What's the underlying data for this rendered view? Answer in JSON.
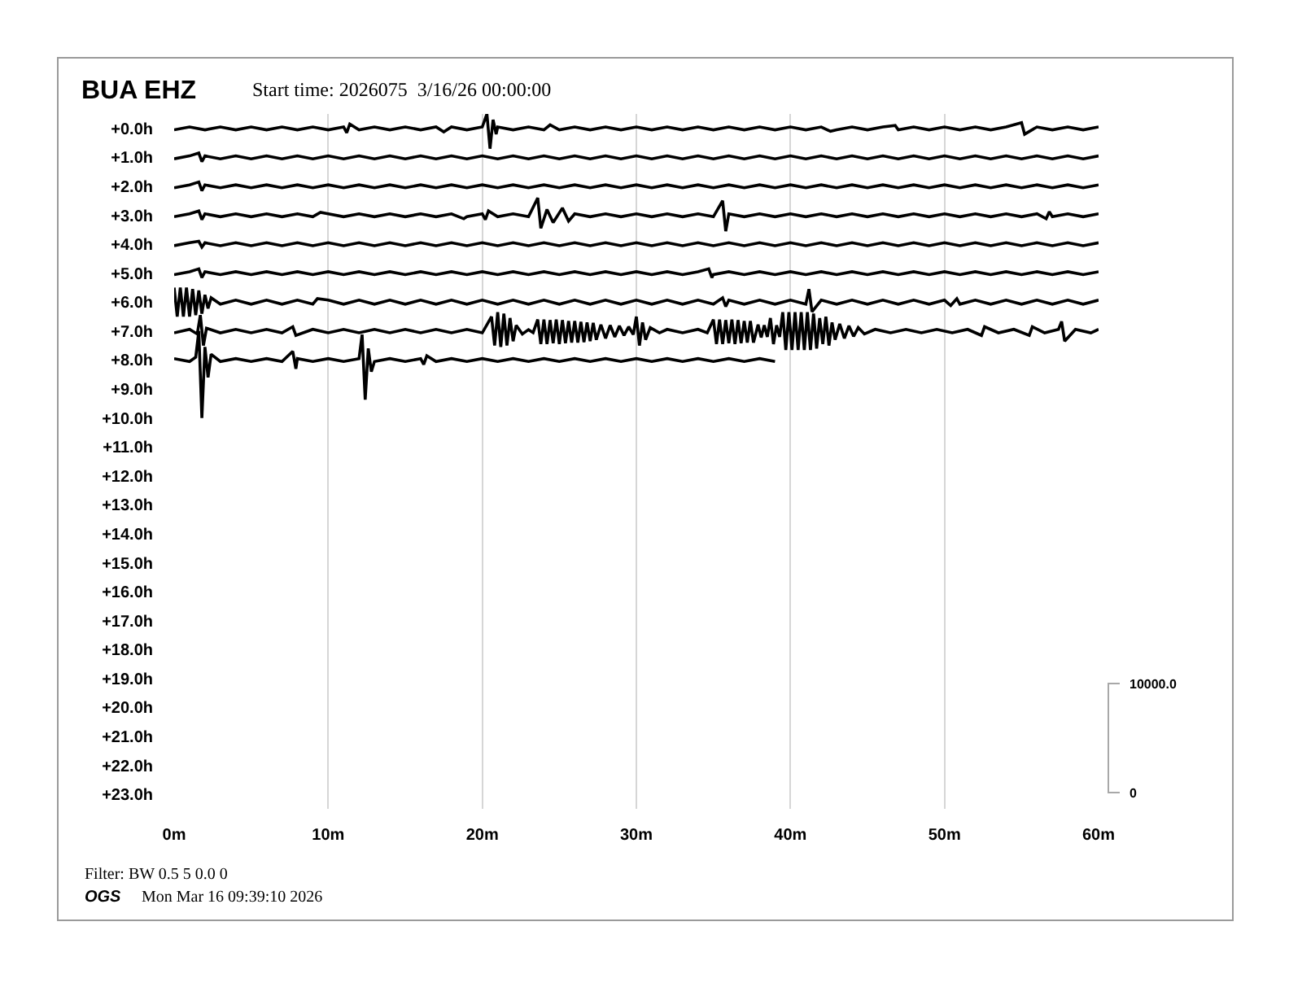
{
  "chart_data": {
    "type": "line",
    "title": "BUA EHZ",
    "subtitle": "Start time: 2026075  3/16/26 00:00:00",
    "annotations": [
      "10000.0",
      "0",
      "Filter: BW 0.5 5 0.0 0",
      "OGS",
      "Mon Mar 16 09:39:10 2026"
    ],
    "xlim": [
      0,
      60
    ],
    "xticks": [
      {
        "value": 0,
        "label": "0m"
      },
      {
        "value": 10,
        "label": "10m"
      },
      {
        "value": 20,
        "label": "20m"
      },
      {
        "value": 30,
        "label": "30m"
      },
      {
        "value": 40,
        "label": "40m"
      },
      {
        "value": 50,
        "label": "50m"
      },
      {
        "value": 60,
        "label": "60m"
      }
    ],
    "ylim": [
      23.5,
      -0.5
    ],
    "yticks": [
      {
        "value": 0,
        "label": "+0.0h"
      },
      {
        "value": 1,
        "label": "+1.0h"
      },
      {
        "value": 2,
        "label": "+2.0h"
      },
      {
        "value": 3,
        "label": "+3.0h"
      },
      {
        "value": 4,
        "label": "+4.0h"
      },
      {
        "value": 5,
        "label": "+5.0h"
      },
      {
        "value": 6,
        "label": "+6.0h"
      },
      {
        "value": 7,
        "label": "+7.0h"
      },
      {
        "value": 8,
        "label": "+8.0h"
      },
      {
        "value": 9,
        "label": "+9.0h"
      },
      {
        "value": 10,
        "label": "+10.0h"
      },
      {
        "value": 11,
        "label": "+11.0h"
      },
      {
        "value": 12,
        "label": "+12.0h"
      },
      {
        "value": 13,
        "label": "+13.0h"
      },
      {
        "value": 14,
        "label": "+14.0h"
      },
      {
        "value": 15,
        "label": "+15.0h"
      },
      {
        "value": 16,
        "label": "+16.0h"
      },
      {
        "value": 17,
        "label": "+17.0h"
      },
      {
        "value": 18,
        "label": "+18.0h"
      },
      {
        "value": 19,
        "label": "+19.0h"
      },
      {
        "value": 20,
        "label": "+20.0h"
      },
      {
        "value": 21,
        "label": "+21.0h"
      },
      {
        "value": 22,
        "label": "+22.0h"
      },
      {
        "value": 23,
        "label": "+23.0h"
      }
    ],
    "grid": "x",
    "series": [
      {
        "color": "#000000",
        "x": [
          0,
          1,
          2,
          3,
          4,
          5,
          6,
          7,
          8,
          9,
          10,
          11,
          11.2,
          11.4,
          12,
          13,
          14,
          15,
          16,
          17,
          17.5,
          18,
          19,
          20,
          20.3,
          20.5,
          20.7,
          20.9,
          21,
          22,
          23,
          24,
          24.4,
          25,
          26,
          27,
          28,
          29,
          30,
          31,
          32,
          33,
          34,
          35,
          36,
          37,
          38,
          39,
          40,
          41,
          42,
          42.6,
          43,
          44,
          45,
          46,
          46.8,
          47,
          48,
          49,
          50,
          51,
          52,
          53,
          54,
          55,
          55.2,
          56,
          57,
          58,
          59,
          60
        ],
        "values": [
          0.05,
          -0.05,
          0.05,
          -0.05,
          0.05,
          -0.05,
          0.05,
          -0.05,
          0.05,
          -0.05,
          0.05,
          -0.05,
          0.15,
          -0.15,
          0.05,
          -0.05,
          0.05,
          -0.05,
          0.05,
          -0.05,
          0.12,
          -0.05,
          0.05,
          -0.05,
          -0.5,
          0.7,
          -0.3,
          0.2,
          -0.05,
          0.05,
          -0.05,
          0.05,
          -0.12,
          0.05,
          -0.05,
          0.05,
          -0.05,
          0.05,
          -0.05,
          0.05,
          -0.05,
          0.05,
          -0.05,
          0.05,
          -0.05,
          0.05,
          -0.05,
          0.05,
          -0.05,
          0.05,
          -0.05,
          0.1,
          0.05,
          -0.05,
          0.05,
          -0.05,
          -0.1,
          0.05,
          -0.05,
          0.05,
          -0.05,
          0.05,
          -0.05,
          0.05,
          -0.05,
          -0.2,
          0.2,
          -0.05,
          0.05,
          -0.05,
          0.05,
          -0.05
        ]
      },
      {
        "color": "#000000",
        "x": [
          0,
          1,
          1.6,
          1.8,
          2,
          3,
          4,
          5,
          6,
          7,
          8,
          9,
          10,
          11,
          12,
          13,
          14,
          15,
          16,
          17,
          18,
          19,
          20,
          21,
          22,
          23,
          24,
          25,
          26,
          27,
          28,
          29,
          30,
          31,
          32,
          33,
          34,
          35,
          36,
          37,
          38,
          39,
          40,
          41,
          42,
          43,
          44,
          45,
          46,
          47,
          48,
          49,
          50,
          51,
          52,
          53,
          54,
          55,
          56,
          57,
          58,
          59,
          60
        ],
        "values": [
          1.05,
          0.95,
          0.85,
          1.15,
          0.95,
          1.05,
          0.95,
          1.05,
          0.95,
          1.05,
          0.95,
          1.05,
          0.95,
          1.05,
          0.95,
          1.05,
          0.95,
          1.05,
          0.95,
          1.05,
          0.95,
          1.05,
          0.95,
          1.05,
          0.95,
          1.05,
          0.95,
          1.05,
          0.95,
          1.05,
          0.95,
          1.05,
          0.95,
          1.05,
          0.95,
          1.05,
          0.95,
          1.05,
          0.95,
          1.05,
          0.95,
          1.05,
          0.95,
          1.05,
          0.95,
          1.05,
          0.95,
          1.05,
          0.95,
          1.05,
          0.95,
          1.05,
          0.95,
          1.05,
          0.95,
          1.05,
          0.95,
          1.05,
          0.95,
          1.05,
          0.95,
          1.05,
          0.95
        ]
      },
      {
        "color": "#000000",
        "x": [
          0,
          1,
          1.6,
          1.8,
          2,
          3,
          4,
          5,
          6,
          7,
          8,
          9,
          10,
          11,
          12,
          13,
          14,
          15,
          16,
          17,
          18,
          19,
          20,
          21,
          22,
          23,
          24,
          25,
          26,
          27,
          28,
          29,
          30,
          31,
          32,
          33,
          34,
          35,
          36,
          37,
          38,
          39,
          40,
          41,
          42,
          43,
          44,
          45,
          46,
          47,
          48,
          49,
          50,
          51,
          52,
          53,
          54,
          55,
          56,
          57,
          58,
          59,
          60
        ],
        "values": [
          2.05,
          1.95,
          1.85,
          2.15,
          1.95,
          2.05,
          1.95,
          2.05,
          1.95,
          2.05,
          1.95,
          2.05,
          1.95,
          2.05,
          1.95,
          2.05,
          1.95,
          2.05,
          1.95,
          2.05,
          1.95,
          2.05,
          1.95,
          2.05,
          1.95,
          2.05,
          1.95,
          2.05,
          1.95,
          2.05,
          1.95,
          2.05,
          1.95,
          2.05,
          1.95,
          2.05,
          1.95,
          2.05,
          1.95,
          2.05,
          1.95,
          2.05,
          1.95,
          2.05,
          1.95,
          2.05,
          1.95,
          2.05,
          1.95,
          2.05,
          1.95,
          2.05,
          1.95,
          2.05,
          1.95,
          2.05,
          1.95,
          2.05,
          1.95,
          2.05,
          1.95,
          2.05,
          1.95
        ]
      },
      {
        "color": "#000000",
        "x": [
          0,
          1,
          1.6,
          1.8,
          2,
          3,
          4,
          5,
          6,
          7,
          8,
          9,
          9.5,
          10,
          11,
          12,
          13,
          14,
          15,
          16,
          17,
          18,
          18.8,
          19,
          20,
          20.2,
          20.4,
          21,
          22,
          23,
          23.6,
          23.8,
          24.2,
          24.6,
          25.2,
          25.6,
          26,
          27,
          28,
          29,
          30,
          31,
          32,
          33,
          34,
          35,
          35.6,
          35.8,
          36,
          37,
          38,
          39,
          40,
          41,
          42,
          43,
          44,
          45,
          46,
          47,
          48,
          49,
          50,
          51,
          52,
          53,
          54,
          55,
          56,
          56.6,
          56.8,
          57,
          58,
          59,
          60
        ],
        "values": [
          3.05,
          2.95,
          2.85,
          3.15,
          2.95,
          3.05,
          2.95,
          3.05,
          2.95,
          3.05,
          2.95,
          3.05,
          2.9,
          2.95,
          3.05,
          2.95,
          3.05,
          2.95,
          3.05,
          2.95,
          3.05,
          2.95,
          3.12,
          3.05,
          2.95,
          3.15,
          2.85,
          3.05,
          2.95,
          3.05,
          2.4,
          3.45,
          2.8,
          3.25,
          2.75,
          3.2,
          2.95,
          3.05,
          2.95,
          3.05,
          2.95,
          3.05,
          2.95,
          3.05,
          2.95,
          3.05,
          2.5,
          3.55,
          2.95,
          3.05,
          2.95,
          3.05,
          2.95,
          3.05,
          2.95,
          3.05,
          2.95,
          3.05,
          2.95,
          3.05,
          2.95,
          3.05,
          2.95,
          3.05,
          2.95,
          3.05,
          2.95,
          3.05,
          2.95,
          3.12,
          2.88,
          3.05,
          2.95,
          3.05,
          2.95
        ]
      },
      {
        "color": "#000000",
        "x": [
          0,
          1,
          1.6,
          1.8,
          2,
          3,
          4,
          5,
          6,
          7,
          8,
          9,
          10,
          11,
          12,
          13,
          14,
          15,
          16,
          17,
          18,
          19,
          20,
          21,
          22,
          23,
          24,
          25,
          26,
          27,
          28,
          29,
          30,
          31,
          32,
          33,
          34,
          35,
          36,
          37,
          38,
          39,
          40,
          41,
          42,
          43,
          44,
          45,
          46,
          47,
          48,
          49,
          50,
          51,
          52,
          53,
          54,
          55,
          56,
          57,
          58,
          59,
          60
        ],
        "values": [
          4.05,
          3.95,
          3.9,
          4.1,
          3.95,
          4.05,
          3.95,
          4.05,
          3.95,
          4.05,
          3.95,
          4.05,
          3.95,
          4.05,
          3.95,
          4.05,
          3.95,
          4.05,
          3.95,
          4.05,
          3.95,
          4.05,
          3.95,
          4.05,
          3.95,
          4.05,
          3.95,
          4.05,
          3.95,
          4.05,
          3.95,
          4.05,
          3.95,
          4.05,
          3.95,
          4.05,
          3.95,
          4.05,
          3.95,
          4.05,
          3.95,
          4.05,
          3.95,
          4.05,
          3.95,
          4.05,
          3.95,
          4.05,
          3.95,
          4.05,
          3.95,
          4.05,
          3.95,
          4.05,
          3.95,
          4.05,
          3.95,
          4.05,
          3.95,
          4.05,
          3.95,
          4.05,
          3.95
        ]
      },
      {
        "color": "#000000",
        "x": [
          0,
          1,
          1.6,
          1.8,
          2,
          3,
          4,
          5,
          6,
          7,
          8,
          9,
          10,
          11,
          12,
          13,
          14,
          15,
          16,
          17,
          18,
          19,
          20,
          21,
          22,
          23,
          24,
          25,
          26,
          27,
          28,
          29,
          30,
          31,
          32,
          33,
          34,
          34.7,
          34.9,
          35,
          36,
          37,
          38,
          39,
          40,
          41,
          42,
          43,
          44,
          45,
          46,
          47,
          48,
          49,
          50,
          51,
          52,
          53,
          54,
          55,
          56,
          57,
          58,
          59,
          60
        ],
        "values": [
          5.05,
          4.95,
          4.85,
          5.15,
          4.95,
          5.05,
          4.95,
          5.05,
          4.95,
          5.05,
          4.95,
          5.05,
          4.95,
          5.05,
          4.95,
          5.05,
          4.95,
          5.05,
          4.95,
          5.05,
          4.95,
          5.05,
          4.95,
          5.05,
          4.95,
          5.05,
          4.95,
          5.05,
          4.95,
          5.05,
          4.95,
          5.05,
          4.95,
          5.05,
          4.95,
          5.05,
          4.95,
          4.85,
          5.15,
          5.05,
          4.95,
          5.05,
          4.95,
          5.05,
          4.95,
          5.05,
          4.95,
          5.05,
          4.95,
          5.05,
          4.95,
          5.05,
          4.95,
          5.05,
          4.95,
          5.05,
          4.95,
          5.05,
          4.95,
          5.05,
          4.95,
          5.05,
          4.95,
          5.05,
          4.95
        ]
      },
      {
        "color": "#000000",
        "x": [
          0,
          0.2,
          0.4,
          0.6,
          0.8,
          1,
          1.2,
          1.4,
          1.6,
          1.8,
          2,
          2.2,
          2.4,
          3,
          4,
          5,
          6,
          7,
          8,
          9,
          9.3,
          10,
          11,
          12,
          13,
          14,
          15,
          16,
          17,
          18,
          19,
          20,
          21,
          22,
          23,
          24,
          25,
          26,
          27,
          28,
          29,
          30,
          31,
          32,
          33,
          34,
          35,
          35.6,
          35.8,
          36,
          37,
          38,
          39,
          40,
          41,
          41.2,
          41.4,
          42,
          43,
          44,
          45,
          46,
          47,
          48,
          49,
          50,
          50.4,
          50.8,
          51,
          52,
          53,
          54,
          55,
          56,
          57,
          58,
          59,
          60
        ],
        "values": [
          5.5,
          6.5,
          5.5,
          6.5,
          5.5,
          6.5,
          5.55,
          6.45,
          5.6,
          6.4,
          5.75,
          6.22,
          5.85,
          6.07,
          5.93,
          6.07,
          5.93,
          6.07,
          5.93,
          6.07,
          5.88,
          5.93,
          6.07,
          5.93,
          6.07,
          5.93,
          6.07,
          5.93,
          6.07,
          5.93,
          6.07,
          5.93,
          6.07,
          5.93,
          6.07,
          5.93,
          6.07,
          5.93,
          6.07,
          5.93,
          6.07,
          5.93,
          6.07,
          5.93,
          6.07,
          5.93,
          6.07,
          5.85,
          6.15,
          5.93,
          6.07,
          5.93,
          6.07,
          5.93,
          6.07,
          5.55,
          6.33,
          5.93,
          6.07,
          5.93,
          6.07,
          5.93,
          6.07,
          5.93,
          6.07,
          5.93,
          6.12,
          5.88,
          6.07,
          5.93,
          6.07,
          5.93,
          6.07,
          5.93,
          6.07,
          5.93,
          6.07,
          5.93
        ]
      },
      {
        "color": "#000000",
        "x": [
          0,
          1,
          1.5,
          1.7,
          1.9,
          2.1,
          3,
          4,
          5,
          6,
          7,
          7.7,
          7.9,
          9,
          10,
          11,
          12,
          13,
          14,
          15,
          16,
          17,
          18,
          19,
          20,
          20.6,
          20.8,
          21.0,
          21.2,
          21.4,
          21.6,
          21.8,
          22.0,
          22.2,
          22.6,
          23.0,
          23.3,
          23.6,
          23.8,
          24.0,
          24.2,
          24.4,
          24.6,
          24.8,
          25.0,
          25.2,
          25.4,
          25.6,
          25.8,
          26.0,
          26.2,
          26.4,
          26.6,
          26.8,
          27.0,
          27.2,
          27.4,
          27.7,
          28.0,
          28.3,
          28.6,
          28.9,
          29.2,
          29.5,
          29.8,
          30.0,
          30.2,
          30.4,
          30.6,
          30.9,
          31.5,
          32,
          33,
          34,
          34.6,
          35.0,
          35.2,
          35.4,
          35.6,
          35.8,
          36.0,
          36.2,
          36.4,
          36.6,
          36.8,
          37.0,
          37.2,
          37.4,
          37.6,
          37.9,
          38.1,
          38.3,
          38.5,
          38.7,
          38.9,
          39.1,
          39.3,
          39.5,
          39.7,
          39.9,
          40.1,
          40.3,
          40.5,
          40.7,
          40.9,
          41.1,
          41.3,
          41.5,
          41.7,
          41.9,
          42.1,
          42.3,
          42.5,
          42.7,
          42.9,
          43.2,
          43.5,
          43.8,
          44.1,
          44.4,
          44.8,
          45.5,
          46.5,
          47.5,
          48.5,
          49.5,
          50.5,
          51.5,
          52.4,
          52.6,
          53.5,
          54.5,
          55.5,
          55.7,
          56.5,
          57.4,
          57.6,
          57.8,
          58.5,
          59.5,
          60
        ],
        "values": [
          7.06,
          6.94,
          7.1,
          6.45,
          7.5,
          6.9,
          7.06,
          6.94,
          7.06,
          6.94,
          7.06,
          6.85,
          7.15,
          6.94,
          7.06,
          6.94,
          7.06,
          6.94,
          7.06,
          6.94,
          7.06,
          6.94,
          7.06,
          6.94,
          7.06,
          6.5,
          7.5,
          6.35,
          7.55,
          6.4,
          7.5,
          6.55,
          7.35,
          6.8,
          7.1,
          6.95,
          7.05,
          6.6,
          7.45,
          6.6,
          7.45,
          6.62,
          7.42,
          6.6,
          7.45,
          6.62,
          7.42,
          6.65,
          7.4,
          6.65,
          7.4,
          6.68,
          7.38,
          6.7,
          7.35,
          6.72,
          7.3,
          6.78,
          7.25,
          6.8,
          7.2,
          6.82,
          7.15,
          6.85,
          7.12,
          6.5,
          7.5,
          6.7,
          7.3,
          6.88,
          7.06,
          6.94,
          7.06,
          6.94,
          7.06,
          6.6,
          7.45,
          6.6,
          7.45,
          6.62,
          7.42,
          6.6,
          7.45,
          6.62,
          7.42,
          6.65,
          7.4,
          6.65,
          7.4,
          6.78,
          7.22,
          6.8,
          7.2,
          6.55,
          7.45,
          6.8,
          7.2,
          6.35,
          7.65,
          6.35,
          7.65,
          6.35,
          7.65,
          6.35,
          7.65,
          6.35,
          7.65,
          6.4,
          7.6,
          6.55,
          7.45,
          6.5,
          7.5,
          6.7,
          7.3,
          6.75,
          7.25,
          6.82,
          7.18,
          6.88,
          7.1,
          6.94,
          7.06,
          6.94,
          7.06,
          6.94,
          7.06,
          6.94,
          7.15,
          6.85,
          7.06,
          6.94,
          7.15,
          6.85,
          7.06,
          6.94,
          6.67,
          7.35,
          6.94,
          7.06,
          6.94
        ]
      },
      {
        "color": "#000000",
        "x": [
          0,
          1,
          1.4,
          1.6,
          1.8,
          2,
          2.2,
          2.4,
          3,
          4,
          5,
          6,
          7,
          7.7,
          7.9,
          8,
          9,
          10,
          11,
          12,
          12.2,
          12.4,
          12.6,
          12.8,
          13,
          14,
          15,
          16,
          16.2,
          16.4,
          17,
          18,
          19,
          20,
          21,
          22,
          23,
          24,
          25,
          26,
          27,
          28,
          29,
          30,
          31,
          32,
          33,
          34,
          35,
          36,
          37,
          38,
          39
        ],
        "values": [
          7.95,
          8.05,
          7.9,
          7.0,
          10.0,
          7.55,
          8.6,
          7.8,
          8.05,
          7.95,
          8.05,
          7.95,
          8.05,
          7.7,
          8.3,
          7.95,
          8.05,
          7.95,
          8.05,
          7.95,
          7.12,
          9.37,
          7.6,
          8.4,
          8.05,
          7.95,
          8.05,
          7.95,
          8.15,
          7.85,
          8.05,
          7.95,
          8.05,
          7.95,
          8.05,
          7.95,
          8.05,
          7.95,
          8.05,
          7.95,
          8.05,
          7.95,
          8.05,
          7.95,
          8.05,
          7.95,
          8.05,
          7.95,
          8.05,
          7.95,
          8.05,
          7.95,
          8.05
        ]
      }
    ]
  }
}
